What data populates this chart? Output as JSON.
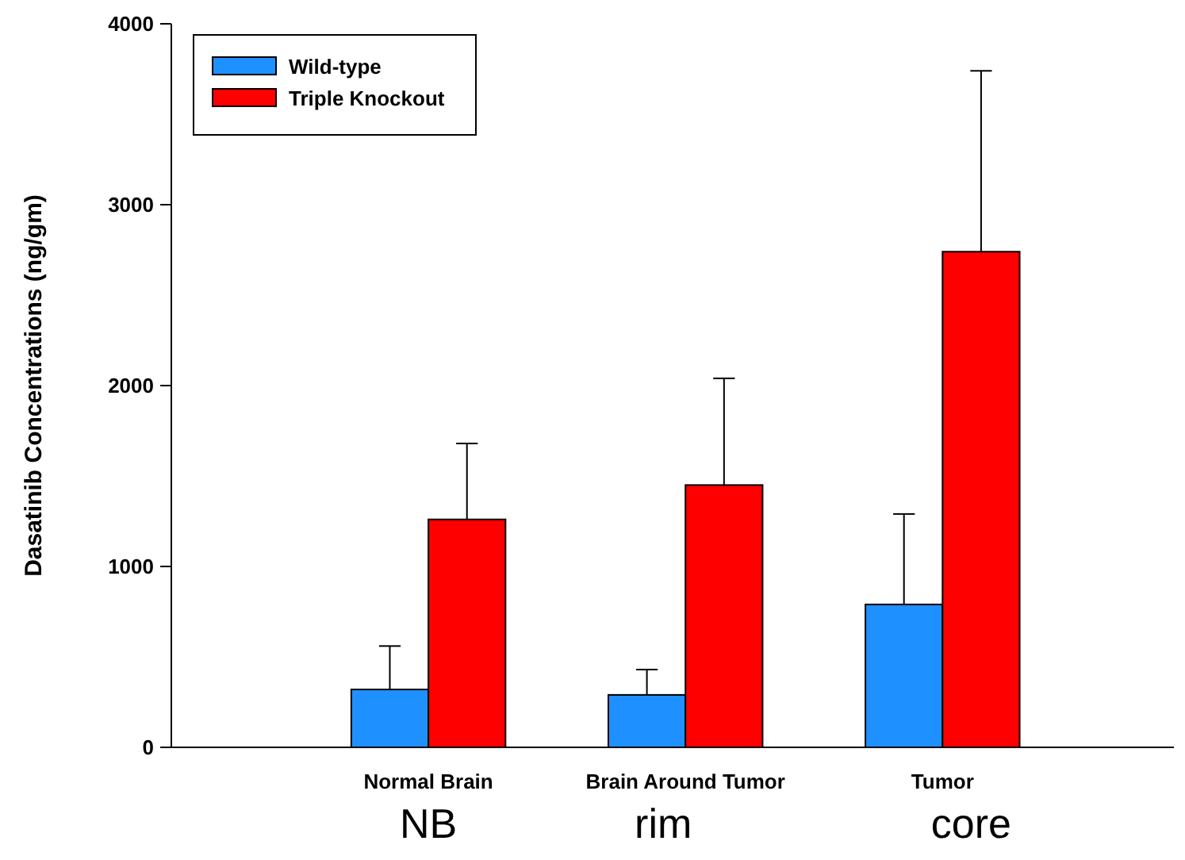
{
  "chart_data": {
    "type": "bar",
    "ylabel": "Dasatinib Concentrations (ng/gm)",
    "categories": [
      "Normal Brain",
      "Brain Around Tumor",
      "Tumor"
    ],
    "series": [
      {
        "name": "Wild-type",
        "color": "#1e90ff",
        "values": [
          320,
          290,
          790
        ],
        "errors": [
          [
            320,
            560
          ],
          [
            290,
            430
          ],
          [
            790,
            1290
          ]
        ]
      },
      {
        "name": "Triple Knockout",
        "color": "#ff0000",
        "values": [
          1260,
          1450,
          2740
        ],
        "errors": [
          [
            1260,
            1680
          ],
          [
            1450,
            2040
          ],
          [
            2740,
            3740
          ]
        ]
      }
    ],
    "ylim": [
      0,
      4000
    ],
    "yticks": [
      0,
      1000,
      2000,
      3000,
      4000
    ],
    "legend": "top left",
    "annotations": [
      "NB",
      "rim",
      "core"
    ]
  }
}
